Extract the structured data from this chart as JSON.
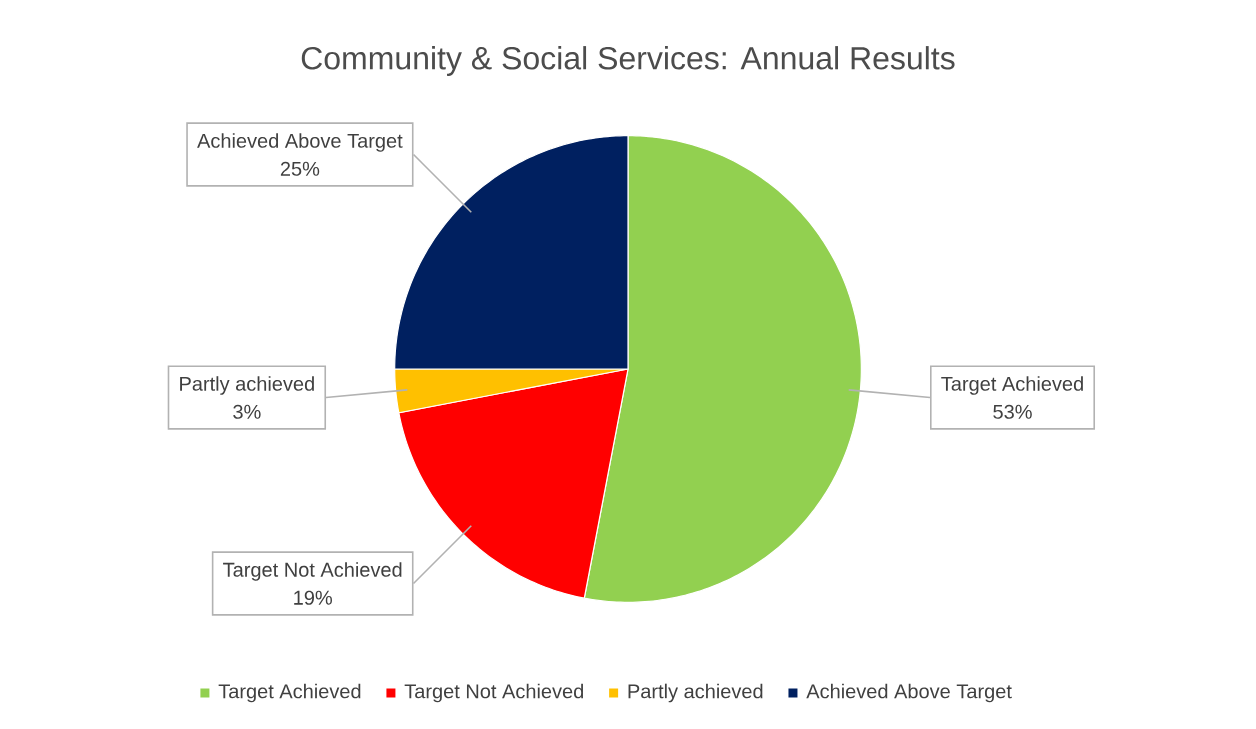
{
  "chart_data": {
    "type": "pie",
    "title": "Community & Social Services:  Annual Results",
    "categories": [
      "Target Achieved",
      "Target Not Achieved",
      "Partly achieved",
      "Achieved Above Target"
    ],
    "values": [
      53,
      19,
      3,
      25
    ],
    "value_labels": [
      "53%",
      "19%",
      "3%",
      "25%"
    ],
    "colors": [
      "#92d050",
      "#ff0000",
      "#ffc000",
      "#002060"
    ],
    "legend": "bottom"
  }
}
